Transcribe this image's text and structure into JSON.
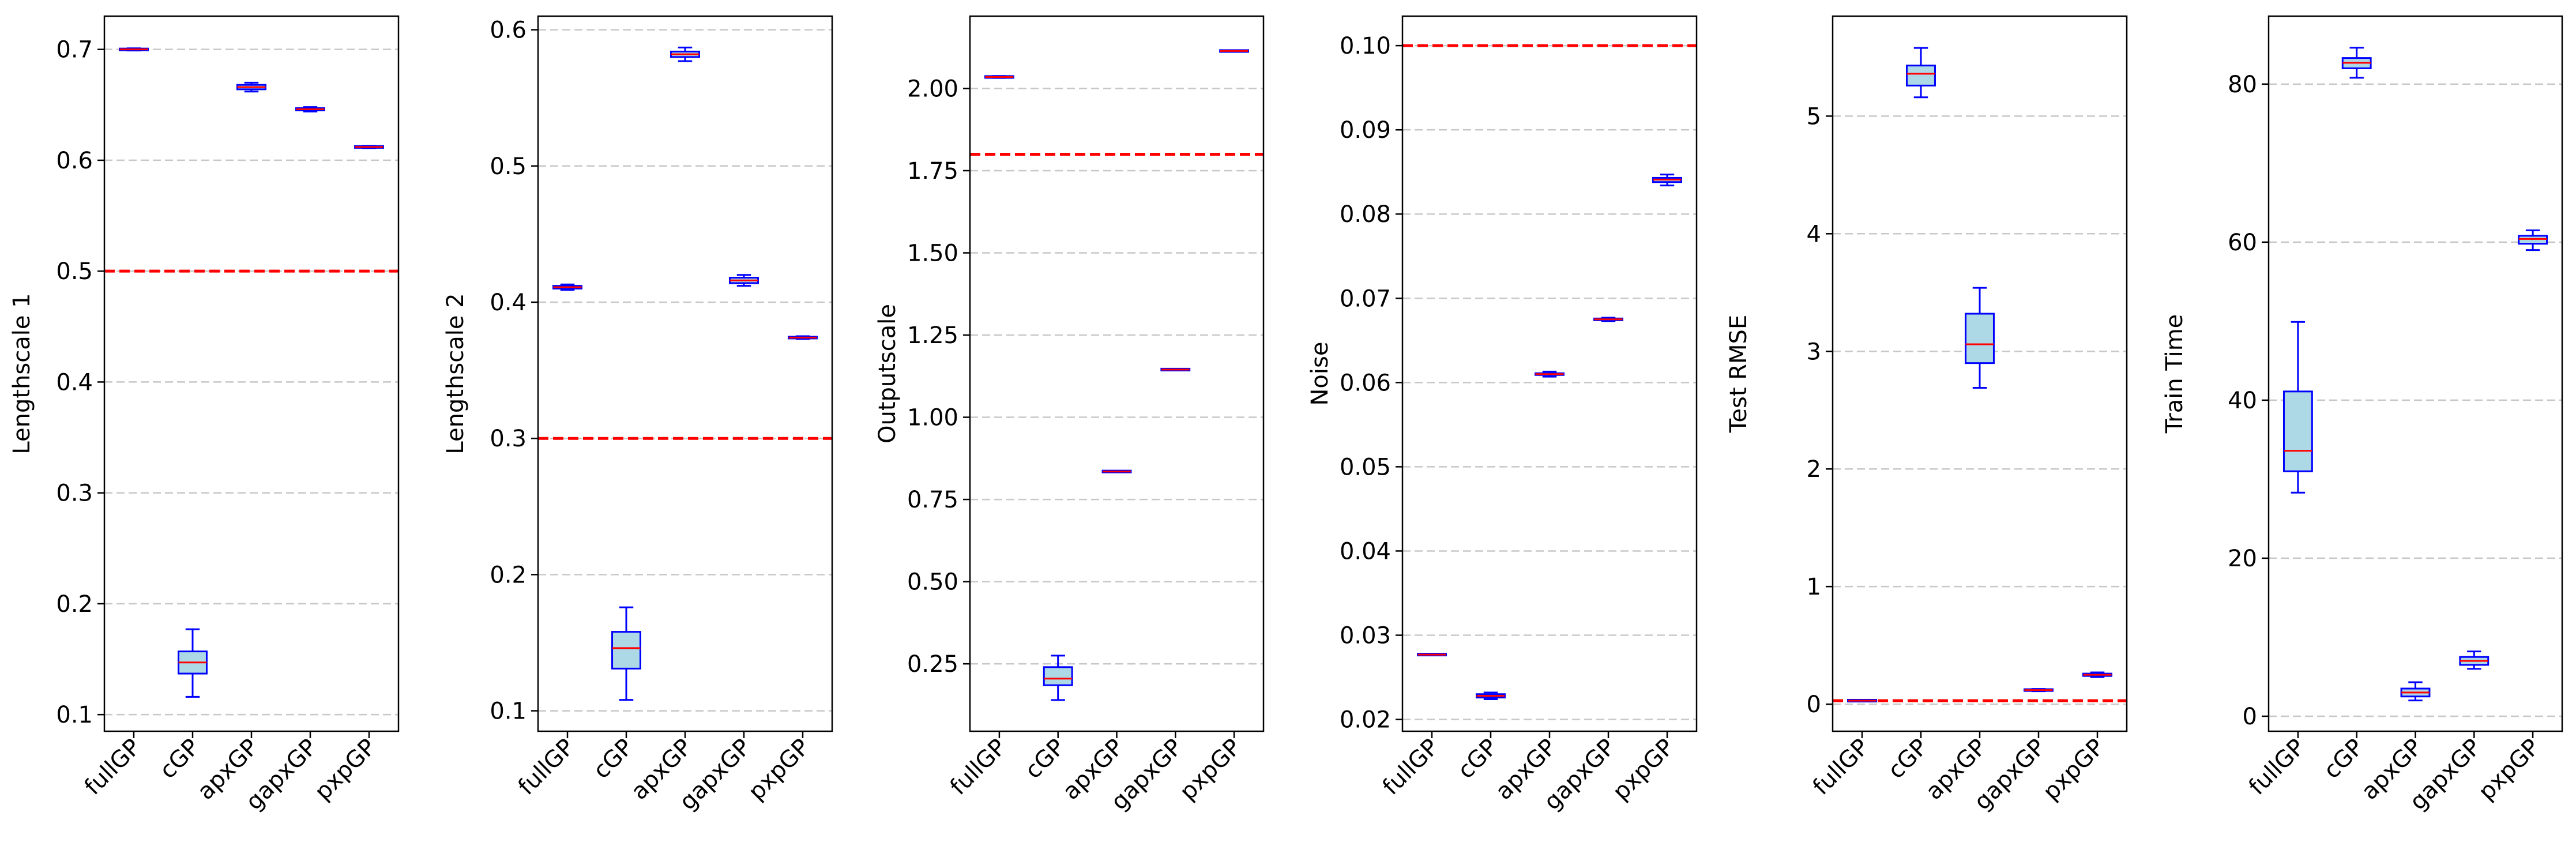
{
  "chart_data": [
    {
      "type": "box",
      "ylabel": "Lengthscale 1",
      "categories": [
        "fullGP",
        "cGP",
        "apxGP",
        "gapxGP",
        "pxpGP"
      ],
      "ylim": [
        0.085,
        0.73
      ],
      "yticks": [
        0.1,
        0.2,
        0.3,
        0.4,
        0.5,
        0.6,
        0.7
      ],
      "ytick_labels": [
        "0.1",
        "0.2",
        "0.3",
        "0.4",
        "0.5",
        "0.6",
        "0.7"
      ],
      "reference_line": 0.5,
      "boxes": [
        {
          "min": 0.699,
          "q1": 0.6995,
          "median": 0.7,
          "q3": 0.7005,
          "max": 0.701
        },
        {
          "min": 0.116,
          "q1": 0.137,
          "median": 0.147,
          "q3": 0.157,
          "max": 0.177
        },
        {
          "min": 0.662,
          "q1": 0.664,
          "median": 0.666,
          "q3": 0.668,
          "max": 0.67
        },
        {
          "min": 0.644,
          "q1": 0.645,
          "median": 0.646,
          "q3": 0.647,
          "max": 0.648
        },
        {
          "min": 0.611,
          "q1": 0.6115,
          "median": 0.612,
          "q3": 0.6125,
          "max": 0.613
        }
      ]
    },
    {
      "type": "box",
      "ylabel": "Lengthscale 2",
      "categories": [
        "fullGP",
        "cGP",
        "apxGP",
        "gapxGP",
        "pxpGP"
      ],
      "ylim": [
        0.085,
        0.61
      ],
      "yticks": [
        0.1,
        0.2,
        0.3,
        0.4,
        0.5,
        0.6
      ],
      "ytick_labels": [
        "0.1",
        "0.2",
        "0.3",
        "0.4",
        "0.5",
        "0.6"
      ],
      "reference_line": 0.3,
      "boxes": [
        {
          "min": 0.409,
          "q1": 0.41,
          "median": 0.411,
          "q3": 0.412,
          "max": 0.413
        },
        {
          "min": 0.108,
          "q1": 0.131,
          "median": 0.146,
          "q3": 0.158,
          "max": 0.176
        },
        {
          "min": 0.577,
          "q1": 0.58,
          "median": 0.582,
          "q3": 0.584,
          "max": 0.587
        },
        {
          "min": 0.412,
          "q1": 0.414,
          "median": 0.416,
          "q3": 0.418,
          "max": 0.42
        },
        {
          "min": 0.373,
          "q1": 0.3735,
          "median": 0.374,
          "q3": 0.3745,
          "max": 0.375
        }
      ]
    },
    {
      "type": "box",
      "ylabel": "Outputscale",
      "categories": [
        "fullGP",
        "cGP",
        "apxGP",
        "gapxGP",
        "pxpGP"
      ],
      "ylim": [
        0.045,
        2.22
      ],
      "yticks": [
        0.25,
        0.5,
        0.75,
        1.0,
        1.25,
        1.5,
        1.75,
        2.0
      ],
      "ytick_labels": [
        "0.25",
        "0.50",
        "0.75",
        "1.00",
        "1.25",
        "1.50",
        "1.75",
        "2.00"
      ],
      "reference_line": 1.8,
      "boxes": [
        {
          "min": 2.032,
          "q1": 2.034,
          "median": 2.035,
          "q3": 2.036,
          "max": 2.038
        },
        {
          "min": 0.14,
          "q1": 0.185,
          "median": 0.205,
          "q3": 0.24,
          "max": 0.275
        },
        {
          "min": 0.833,
          "q1": 0.834,
          "median": 0.835,
          "q3": 0.836,
          "max": 0.837
        },
        {
          "min": 1.143,
          "q1": 1.144,
          "median": 1.145,
          "q3": 1.146,
          "max": 1.147
        },
        {
          "min": 2.112,
          "q1": 2.113,
          "median": 2.114,
          "q3": 2.115,
          "max": 2.116
        }
      ]
    },
    {
      "type": "box",
      "ylabel": "Noise",
      "categories": [
        "fullGP",
        "cGP",
        "apxGP",
        "gapxGP",
        "pxpGP"
      ],
      "ylim": [
        0.0186,
        0.1035
      ],
      "yticks": [
        0.02,
        0.03,
        0.04,
        0.05,
        0.06,
        0.07,
        0.08,
        0.09,
        0.1
      ],
      "ytick_labels": [
        "0.02",
        "0.03",
        "0.04",
        "0.05",
        "0.06",
        "0.07",
        "0.08",
        "0.09",
        "0.10"
      ],
      "reference_line": 0.1,
      "boxes": [
        {
          "min": 0.0276,
          "q1": 0.02765,
          "median": 0.0277,
          "q3": 0.02775,
          "max": 0.0278
        },
        {
          "min": 0.0224,
          "q1": 0.0226,
          "median": 0.0228,
          "q3": 0.023,
          "max": 0.0232
        },
        {
          "min": 0.0607,
          "q1": 0.0609,
          "median": 0.061,
          "q3": 0.0611,
          "max": 0.0613
        },
        {
          "min": 0.0673,
          "q1": 0.0674,
          "median": 0.0675,
          "q3": 0.0676,
          "max": 0.0677
        },
        {
          "min": 0.0834,
          "q1": 0.0838,
          "median": 0.0841,
          "q3": 0.0843,
          "max": 0.0847
        }
      ]
    },
    {
      "type": "box",
      "ylabel": "Test RMSE",
      "categories": [
        "fullGP",
        "cGP",
        "apxGP",
        "gapxGP",
        "pxpGP"
      ],
      "ylim": [
        -0.23,
        5.85
      ],
      "yticks": [
        0,
        1,
        2,
        3,
        4,
        5
      ],
      "ytick_labels": [
        "0",
        "1",
        "2",
        "3",
        "4",
        "5"
      ],
      "reference_line": 0.03,
      "boxes": [
        {
          "min": 0.025,
          "q1": 0.028,
          "median": 0.03,
          "q3": 0.032,
          "max": 0.035
        },
        {
          "min": 5.16,
          "q1": 5.26,
          "median": 5.36,
          "q3": 5.43,
          "max": 5.58
        },
        {
          "min": 2.69,
          "q1": 2.9,
          "median": 3.06,
          "q3": 3.32,
          "max": 3.54
        },
        {
          "min": 0.11,
          "q1": 0.115,
          "median": 0.12,
          "q3": 0.125,
          "max": 0.13
        },
        {
          "min": 0.23,
          "q1": 0.24,
          "median": 0.25,
          "q3": 0.26,
          "max": 0.27
        }
      ]
    },
    {
      "type": "box",
      "ylabel": "Train Time",
      "categories": [
        "fullGP",
        "cGP",
        "apxGP",
        "gapxGP",
        "pxpGP"
      ],
      "ylim": [
        -1.9,
        88.6
      ],
      "yticks": [
        0,
        20,
        40,
        60,
        80
      ],
      "ytick_labels": [
        "0",
        "20",
        "40",
        "60",
        "80"
      ],
      "reference_line": null,
      "boxes": [
        {
          "min": 28.3,
          "q1": 31.0,
          "median": 33.6,
          "q3": 41.1,
          "max": 49.9
        },
        {
          "min": 80.8,
          "q1": 82.0,
          "median": 82.7,
          "q3": 83.3,
          "max": 84.6
        },
        {
          "min": 2.0,
          "q1": 2.5,
          "median": 3.0,
          "q3": 3.5,
          "max": 4.3
        },
        {
          "min": 6.0,
          "q1": 6.5,
          "median": 7.0,
          "q3": 7.5,
          "max": 8.2
        },
        {
          "min": 59.0,
          "q1": 59.8,
          "median": 60.4,
          "q3": 60.8,
          "max": 61.5
        }
      ]
    }
  ],
  "colors": {
    "box_fill": "#add8e6",
    "box_edge": "#0000ff",
    "median": "#ff0000",
    "reference": "#ff0000",
    "grid": "#c8c8c8",
    "frame": "#000000"
  }
}
